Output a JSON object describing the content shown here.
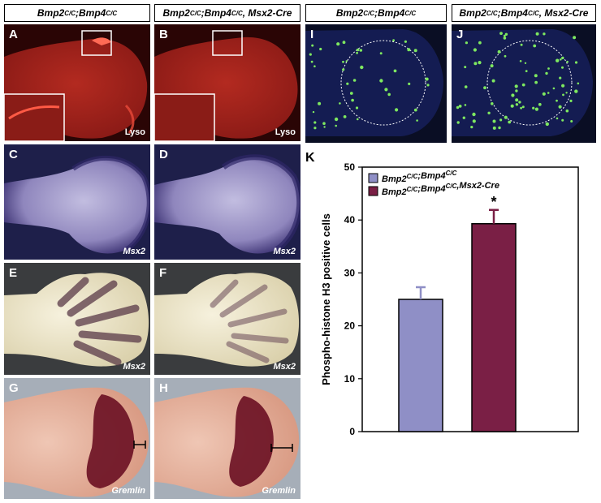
{
  "headers": {
    "left_ctrl": {
      "text": "Bmp2",
      "sup1": "C/C",
      "mid": ";Bmp4",
      "sup2": "C/C",
      "tail": ""
    },
    "left_mut": {
      "text": "Bmp2",
      "sup1": "C/C",
      "mid": ";Bmp4",
      "sup2": "C/C",
      "tail": ", Msx2-Cre"
    },
    "right_ctrl": {
      "text": "Bmp2",
      "sup1": "C/C",
      "mid": ";Bmp4",
      "sup2": "C/C",
      "tail": ""
    },
    "right_mut": {
      "text": "Bmp2",
      "sup1": "C/C",
      "mid": ";Bmp4",
      "sup2": "C/C",
      "tail": ", Msx2-Cre"
    }
  },
  "panels": {
    "A": {
      "label": "A",
      "stain": "Lyso"
    },
    "B": {
      "label": "B",
      "stain": "Lyso"
    },
    "C": {
      "label": "C",
      "gene": "Msx2"
    },
    "D": {
      "label": "D",
      "gene": "Msx2"
    },
    "E": {
      "label": "E",
      "gene": "Msx2"
    },
    "F": {
      "label": "F",
      "gene": "Msx2"
    },
    "G": {
      "label": "G",
      "gene": "Gremlin"
    },
    "H": {
      "label": "H",
      "gene": "Gremlin"
    },
    "I": {
      "label": "I"
    },
    "J": {
      "label": "J"
    }
  },
  "colors": {
    "lyso_bg": "#2a0505",
    "lyso_limb": "#a5221c",
    "msx_bg": "#1e1f4a",
    "msx_limb": "#9c94c4",
    "bright_bg": "#3a3c3e",
    "bright_limb": "#ece6cf",
    "gremlin_bg": "#a6aeb8",
    "gremlin_limb": "#e8b4a2",
    "gremlin_stain": "#6a0f22",
    "dapi_bg": "#0a0e24",
    "dapi_tissue": "#141c52",
    "ph3_dot": "#7ee860",
    "bar_ctrl": "#8f8fc6",
    "bar_mut": "#7a1f45"
  },
  "chart_data": {
    "type": "bar",
    "title": "",
    "panel_label": "K",
    "xlabel": "",
    "ylabel": "Phospho-histone H3 positive cells",
    "ylim": [
      0,
      50
    ],
    "yticks": [
      "0",
      "10",
      "20",
      "30",
      "40",
      "50"
    ],
    "grid": false,
    "legend_position": "top-left",
    "series": [
      {
        "name": "Bmp2C/C;Bmp4C/C",
        "legend_base": "Bmp2",
        "legend_sup1": "C/C",
        "legend_mid": ";Bmp4",
        "legend_sup2": "C/C",
        "legend_tail": "",
        "value": 25,
        "error": 2.3,
        "color": "#8f8fc6"
      },
      {
        "name": "Bmp2C/C;Bmp4C/C,Msx2-Cre",
        "legend_base": "Bmp2",
        "legend_sup1": "C/C",
        "legend_mid": ";Bmp4",
        "legend_sup2": "C/C",
        "legend_tail": ",Msx2-Cre",
        "value": 39.3,
        "error": 2.6,
        "color": "#7a1f45"
      }
    ],
    "annotations": [
      {
        "text": "*",
        "series_index": 1
      }
    ]
  }
}
